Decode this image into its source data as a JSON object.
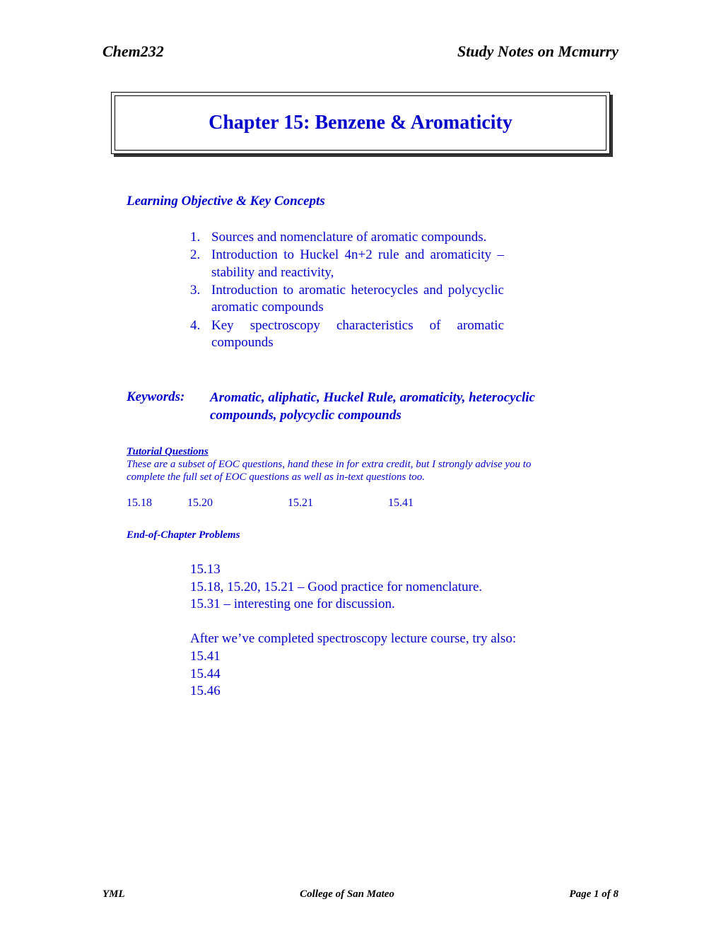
{
  "header": {
    "left": "Chem232",
    "right": "Study Notes on Mcmurry"
  },
  "title": "Chapter 15: Benzene & Aromaticity",
  "objectives": {
    "heading": "Learning Objective & Key Concepts",
    "items": [
      {
        "num": "1.",
        "text": "Sources and nomenclature of aromatic compounds."
      },
      {
        "num": "2.",
        "text": "Introduction to Huckel 4n+2 rule  and aromaticity – stability and reactivity,"
      },
      {
        "num": "3.",
        "text": "Introduction to aromatic heterocycles and polycyclic aromatic compounds"
      },
      {
        "num": "4.",
        "text": "Key spectroscopy characteristics of aromatic compounds"
      }
    ]
  },
  "keywords": {
    "label": "Keywords:",
    "text": "Aromatic, aliphatic, Huckel Rule, aromaticity, heterocyclic compounds, polycyclic compounds"
  },
  "tutorial": {
    "heading": "Tutorial Questions",
    "desc": "These are a subset of EOC questions, hand these in for extra credit, but I strongly advise you to complete the full set of EOC questions as well as in-text questions too.",
    "nums": [
      "15.18",
      "15.20",
      "15.21",
      "15.41"
    ]
  },
  "eoc": {
    "heading": "End-of-Chapter Problems",
    "lines1": [
      "15.13",
      "15.18, 15.20, 15.21 – Good practice for nomenclature.",
      "15.31 – interesting one for discussion."
    ],
    "lines2": [
      "After we’ve completed spectroscopy lecture course, try also:",
      "15.41",
      "15.44",
      "15.46"
    ]
  },
  "footer": {
    "left": "YML",
    "center": "College of San Mateo",
    "right": "Page 1 of 8"
  },
  "colors": {
    "body_text": "#0000cc",
    "header_text": "#000000",
    "background": "#ffffff",
    "box_border": "#000000",
    "box_shadow": "#333333"
  }
}
